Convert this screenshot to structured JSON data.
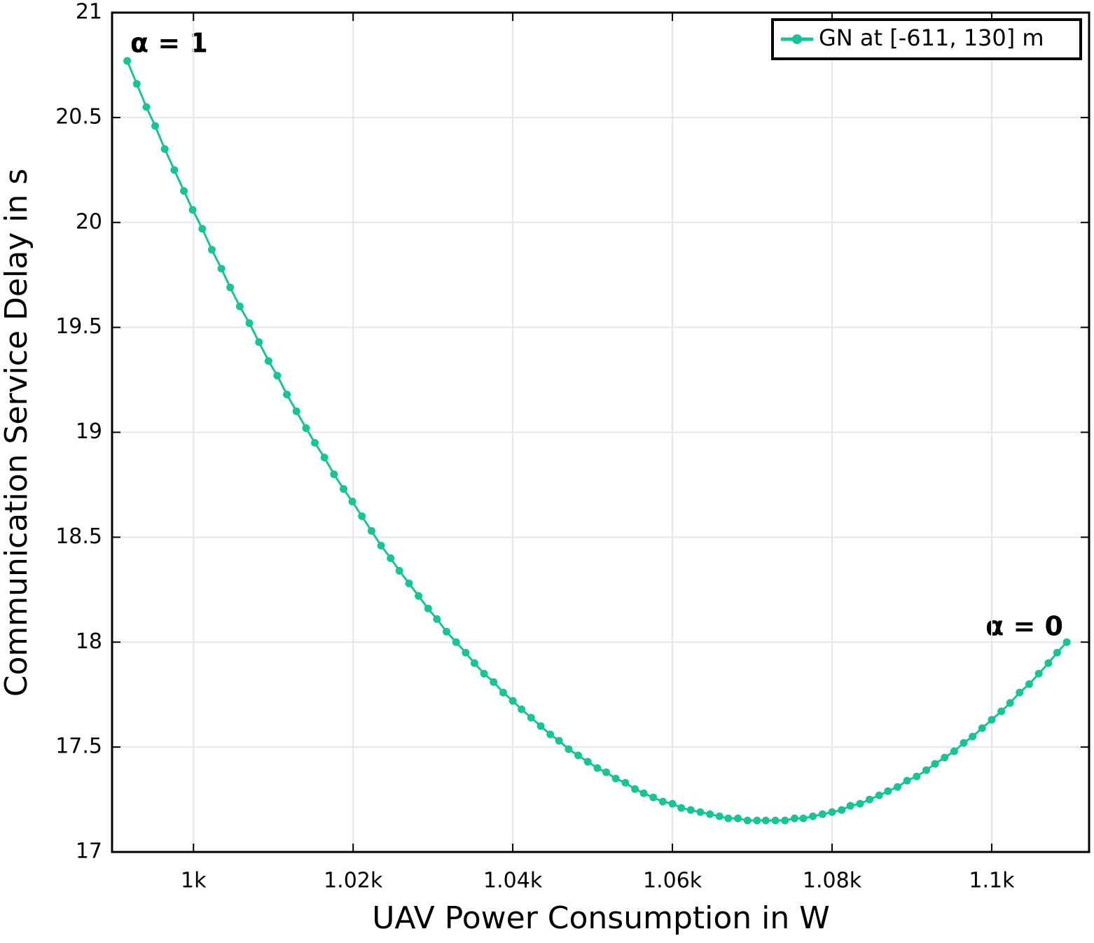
{
  "chart_data": {
    "type": "line",
    "xlabel": "UAV Power Consumption in W",
    "ylabel": "Communication Service Delay in s",
    "xlim": [
      989.8,
      1112.2
    ],
    "ylim": [
      17,
      21
    ],
    "xticks": [
      {
        "value": 1000,
        "label": "1k"
      },
      {
        "value": 1020,
        "label": "1.02k"
      },
      {
        "value": 1040,
        "label": "1.04k"
      },
      {
        "value": 1060,
        "label": "1.06k"
      },
      {
        "value": 1080,
        "label": "1.08k"
      },
      {
        "value": 1100,
        "label": "1.1k"
      }
    ],
    "yticks": [
      17,
      17.5,
      18,
      18.5,
      19,
      19.5,
      20,
      20.5,
      21
    ],
    "grid": true,
    "legend": "upper right",
    "annotations": [
      "α = 1",
      "α = 0"
    ],
    "x": [
      991.7,
      992.9,
      994.1,
      995.2,
      996.4,
      997.6,
      998.8,
      999.9,
      1001.1,
      1002.3,
      1003.5,
      1004.6,
      1005.8,
      1007.0,
      1008.2,
      1009.4,
      1010.5,
      1011.7,
      1012.9,
      1014.1,
      1015.2,
      1016.4,
      1017.6,
      1018.8,
      1019.9,
      1021.1,
      1022.3,
      1023.5,
      1024.7,
      1025.8,
      1027.0,
      1028.2,
      1029.4,
      1030.5,
      1031.7,
      1032.9,
      1034.1,
      1035.2,
      1036.4,
      1037.6,
      1038.8,
      1040.0,
      1041.1,
      1042.3,
      1043.5,
      1044.7,
      1045.8,
      1047.0,
      1048.2,
      1049.4,
      1050.6,
      1051.7,
      1052.9,
      1054.1,
      1055.3,
      1056.4,
      1057.6,
      1058.8,
      1060.0,
      1061.1,
      1062.3,
      1063.5,
      1064.7,
      1065.9,
      1067.0,
      1068.2,
      1069.4,
      1070.6,
      1071.7,
      1072.9,
      1074.1,
      1075.3,
      1076.4,
      1077.6,
      1078.8,
      1080.0,
      1081.2,
      1082.3,
      1083.5,
      1084.7,
      1085.9,
      1087.0,
      1088.2,
      1089.4,
      1090.6,
      1091.8,
      1092.9,
      1094.1,
      1095.3,
      1096.5,
      1097.6,
      1098.8,
      1100.0,
      1101.2,
      1102.3,
      1103.5,
      1104.7,
      1105.9,
      1107.1,
      1108.2,
      1109.4
    ],
    "series": [
      {
        "name": "GN at [-611, 130] m",
        "color": "#17c496",
        "values": [
          20.77,
          20.66,
          20.55,
          20.46,
          20.35,
          20.25,
          20.15,
          20.06,
          19.97,
          19.87,
          19.78,
          19.69,
          19.6,
          19.52,
          19.43,
          19.34,
          19.27,
          19.18,
          19.1,
          19.02,
          18.95,
          18.88,
          18.8,
          18.73,
          18.67,
          18.6,
          18.53,
          18.46,
          18.4,
          18.34,
          18.28,
          18.22,
          18.16,
          18.11,
          18.05,
          18.0,
          17.95,
          17.9,
          17.85,
          17.81,
          17.76,
          17.72,
          17.68,
          17.64,
          17.6,
          17.56,
          17.53,
          17.49,
          17.46,
          17.43,
          17.4,
          17.38,
          17.35,
          17.33,
          17.3,
          17.28,
          17.26,
          17.24,
          17.23,
          17.21,
          17.2,
          17.19,
          17.18,
          17.17,
          17.16,
          17.16,
          17.15,
          17.15,
          17.15,
          17.15,
          17.15,
          17.16,
          17.16,
          17.17,
          17.18,
          17.19,
          17.2,
          17.22,
          17.23,
          17.25,
          17.27,
          17.29,
          17.31,
          17.34,
          17.36,
          17.39,
          17.42,
          17.45,
          17.48,
          17.52,
          17.55,
          17.59,
          17.63,
          17.67,
          17.71,
          17.76,
          17.8,
          17.85,
          17.9,
          17.95,
          18.0
        ]
      }
    ]
  }
}
